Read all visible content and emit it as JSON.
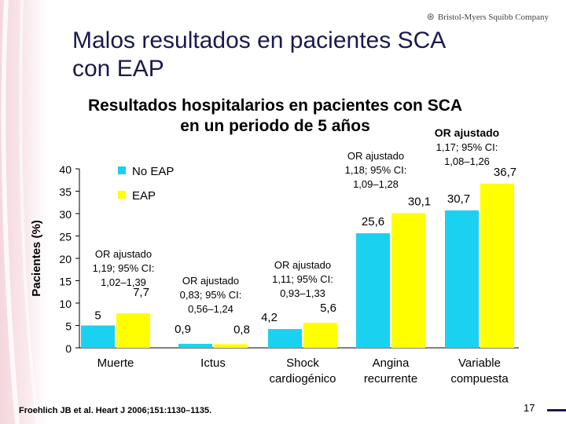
{
  "slide": {
    "title_line1": "Malos resultados en pacientes SCA",
    "title_line2": "con EAP",
    "logo": "Bristol-Myers Squibb Company",
    "page_number": "17",
    "footnote": "Froehlich JB et al. Heart J 2006;151:1130–1135."
  },
  "chart_data": {
    "type": "bar",
    "title_line1": "Resultados hospitalarios en pacientes con SCA",
    "title_line2": "en un periodo de 5 años",
    "ylabel": "Pacientes (%)",
    "ylim": [
      0,
      40
    ],
    "yticks": [
      0,
      5,
      10,
      15,
      20,
      25,
      30,
      35,
      40
    ],
    "categories": [
      [
        "Muerte"
      ],
      [
        "Ictus"
      ],
      [
        "Shock",
        "cardiogénico"
      ],
      [
        "Angina",
        "recurrente"
      ],
      [
        "Variable",
        "compuesta"
      ]
    ],
    "series": [
      {
        "name": "No EAP",
        "color": "#1ad1f0",
        "values": [
          5,
          0.9,
          4.2,
          25.6,
          30.7
        ],
        "labels": [
          "5",
          "0,9",
          "4,2",
          "25,6",
          "30,7"
        ]
      },
      {
        "name": "EAP",
        "color": "#ffff00",
        "values": [
          7.7,
          0.8,
          5.6,
          30.1,
          36.7
        ],
        "labels": [
          "7,7",
          "0,8",
          "5,6",
          "30,1",
          "36,7"
        ]
      }
    ],
    "annotations": [
      [
        "OR ajustado",
        "1,19; 95% CI:",
        "1,02–1,39"
      ],
      [
        "OR ajustado",
        "0,83; 95% CI:",
        "0,56–1,24"
      ],
      [
        "OR ajustado",
        "1,11; 95% CI:",
        "0,93–1,33"
      ],
      [
        "OR ajustado",
        "1,18; 95% CI:",
        "1,09–1,28"
      ],
      [
        "OR ajustado",
        "1,17; 95% CI:",
        "1,08–1,26"
      ]
    ]
  }
}
